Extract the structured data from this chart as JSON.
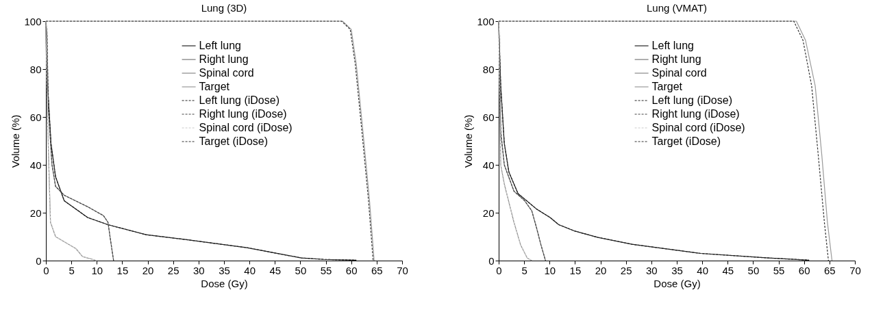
{
  "chart_data": [
    {
      "type": "line",
      "title": "Lung (3D)",
      "xlabel": "Dose (Gy)",
      "ylabel": "Volume (%)",
      "xlim": [
        0,
        70
      ],
      "ylim": [
        0,
        100
      ],
      "xticks": [
        0,
        5,
        10,
        15,
        20,
        25,
        30,
        35,
        40,
        45,
        50,
        55,
        60,
        65,
        70
      ],
      "yticks": [
        0,
        20,
        40,
        60,
        80,
        100
      ],
      "grid": false,
      "legend": "top",
      "series": [
        {
          "name": "Left lung",
          "color": "#222222",
          "line_style": "solid",
          "x": [
            0,
            0.1,
            1,
            1.9,
            3.6,
            8.2,
            12.2,
            19.7,
            27.4,
            39.5,
            50.2,
            54.6,
            61
          ],
          "values": [
            100,
            82,
            49,
            35,
            25,
            18,
            15,
            10.8,
            8.8,
            5.4,
            1.1,
            0.5,
            0.2
          ]
        },
        {
          "name": "Right lung",
          "color": "#777777",
          "line_style": "solid",
          "x": [
            0,
            0.2,
            0.5,
            1.2,
            1.9,
            3.6,
            8.2,
            11.3,
            12.2,
            12.6,
            13.3
          ],
          "values": [
            100,
            95,
            63,
            40,
            31,
            27.3,
            22.5,
            18.8,
            16,
            10,
            0
          ]
        },
        {
          "name": "Spinal cord",
          "color": "#888888",
          "line_style": "solid",
          "x": [
            0,
            0.3,
            0.9,
            1.9,
            5.9,
            7.2,
            10
          ],
          "values": [
            100,
            60,
            16,
            10,
            5,
            1.7,
            0
          ]
        },
        {
          "name": "Target",
          "color": "#999999",
          "line_style": "solid",
          "x": [
            0,
            58.3,
            60,
            61,
            62.3,
            63.6,
            64.5
          ],
          "values": [
            100,
            100,
            96.6,
            82,
            54,
            25,
            0
          ]
        },
        {
          "name": "Left lung (iDose)",
          "color": "#222222",
          "line_style": "dashed",
          "x": [
            0,
            0.1,
            1,
            1.9,
            3.6,
            8.2,
            12.2,
            19.7,
            27.4,
            39.5,
            50.2,
            54.6,
            61
          ],
          "values": [
            100,
            82,
            49,
            35,
            25,
            18,
            15,
            10.8,
            8.8,
            5.4,
            1.1,
            0.5,
            0.2
          ]
        },
        {
          "name": "Right lung (iDose)",
          "color": "#444444",
          "line_style": "dashed",
          "x": [
            0,
            0.2,
            0.5,
            1.2,
            1.9,
            3.6,
            8.2,
            11.3,
            12.2,
            12.6,
            13.3
          ],
          "values": [
            100,
            95,
            63,
            40,
            31,
            27.3,
            22.5,
            18.8,
            16,
            10,
            0
          ]
        },
        {
          "name": "Spinal cord (iDose)",
          "color": "#cccccc",
          "line_style": "dashed",
          "x": [
            0,
            0.3,
            0.9,
            1.9,
            5.9,
            7.2,
            10
          ],
          "values": [
            100,
            60,
            16,
            10,
            5,
            1.7,
            0
          ]
        },
        {
          "name": "Target (iDose)",
          "color": "#333333",
          "line_style": "dashed",
          "x": [
            0,
            58.1,
            59.8,
            60.8,
            62.1,
            63.4,
            64.3
          ],
          "values": [
            100,
            100,
            96.6,
            82,
            54,
            25,
            0
          ]
        }
      ]
    },
    {
      "type": "line",
      "title": "Lung (VMAT)",
      "xlabel": "Dose (Gy)",
      "ylabel": "Volume (%)",
      "xlim": [
        0,
        70
      ],
      "ylim": [
        0,
        100
      ],
      "xticks": [
        0,
        5,
        10,
        15,
        20,
        25,
        30,
        35,
        40,
        45,
        50,
        55,
        60,
        65,
        70
      ],
      "yticks": [
        0,
        20,
        40,
        60,
        80,
        100
      ],
      "grid": false,
      "legend": "top",
      "series": [
        {
          "name": "Left lung",
          "color": "#222222",
          "line_style": "solid",
          "x": [
            0,
            0.4,
            1.1,
            2,
            3.8,
            7.4,
            10.1,
            11.8,
            15,
            19.5,
            26.2,
            39.7,
            53,
            61
          ],
          "values": [
            100,
            73,
            49,
            37,
            28,
            21.6,
            18,
            15,
            12.3,
            9.7,
            6.8,
            3,
            1.1,
            0.2
          ]
        },
        {
          "name": "Right lung",
          "color": "#777777",
          "line_style": "solid",
          "x": [
            0,
            0.2,
            0.4,
            1.1,
            3,
            5.1,
            6.5,
            7.4,
            8.3,
            9.2
          ],
          "values": [
            100,
            80,
            54,
            40,
            29,
            25,
            20.8,
            14,
            6.6,
            0
          ]
        },
        {
          "name": "Spinal cord",
          "color": "#888888",
          "line_style": "solid",
          "x": [
            0,
            0.2,
            0.4,
            1.1,
            3,
            4.3,
            5.6,
            6.5
          ],
          "values": [
            100,
            70,
            40,
            32,
            16,
            6.6,
            1.1,
            0
          ]
        },
        {
          "name": "Target",
          "color": "#999999",
          "line_style": "solid",
          "x": [
            0,
            58.5,
            60.3,
            62.2,
            63.5,
            64.6,
            65.5
          ],
          "values": [
            100,
            100,
            92,
            73,
            44,
            16,
            0
          ]
        },
        {
          "name": "Left lung (iDose)",
          "color": "#222222",
          "line_style": "dashed",
          "x": [
            0,
            0.4,
            1.1,
            2,
            3.8,
            7.4,
            10.1,
            11.8,
            15,
            19.5,
            26.2,
            39.7,
            53,
            61
          ],
          "values": [
            100,
            73,
            49,
            37,
            28,
            21.6,
            18,
            15,
            12.3,
            9.7,
            6.8,
            3,
            1.1,
            0.2
          ]
        },
        {
          "name": "Right lung (iDose)",
          "color": "#444444",
          "line_style": "dashed",
          "x": [
            0,
            0.2,
            0.4,
            1.1,
            3,
            5.1,
            6.5,
            7.4,
            8.3,
            9.2
          ],
          "values": [
            100,
            80,
            54,
            40,
            29,
            25,
            20.8,
            14,
            6.6,
            0
          ]
        },
        {
          "name": "Spinal cord (iDose)",
          "color": "#cccccc",
          "line_style": "dashed",
          "x": [
            0,
            0.2,
            0.4,
            1.1,
            3,
            4.3,
            5.6,
            6.5
          ],
          "values": [
            100,
            70,
            40,
            32,
            16,
            6.6,
            1.1,
            0
          ]
        },
        {
          "name": "Target (iDose)",
          "color": "#333333",
          "line_style": "dashed",
          "x": [
            0,
            58,
            59.8,
            61.5,
            62.8,
            64,
            64.8
          ],
          "values": [
            100,
            100,
            92,
            73,
            44,
            16,
            0
          ]
        }
      ]
    }
  ]
}
